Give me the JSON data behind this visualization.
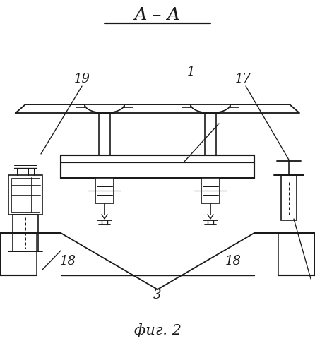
{
  "bg": "#ffffff",
  "lc": "#1a1a1a",
  "title": "А – А",
  "caption": "фиг. 2",
  "lw": 1.2
}
